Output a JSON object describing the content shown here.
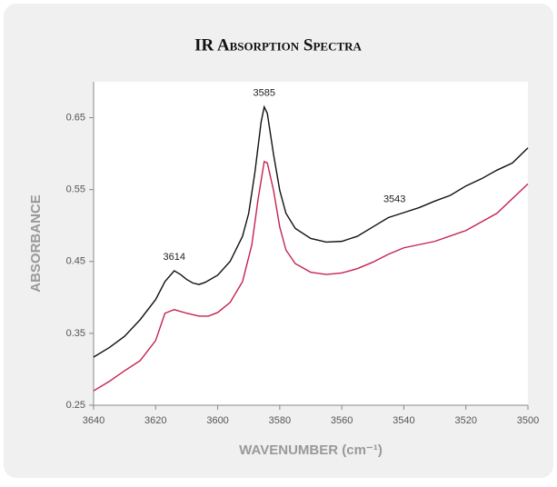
{
  "chart_data": {
    "type": "line",
    "title": "IR Absorption Spectra",
    "xlabel": "WAVENUMBER (cm⁻¹)",
    "ylabel": "ABSORBANCE",
    "xlim": [
      3640,
      3500
    ],
    "xticks": [
      3640,
      3620,
      3600,
      3580,
      3560,
      3540,
      3520,
      3500
    ],
    "ylim": [
      0.25,
      0.7
    ],
    "yticks": [
      0.25,
      0.35,
      0.45,
      0.55,
      0.65
    ],
    "series": [
      {
        "color": "#111111",
        "x": [
          3640,
          3635,
          3630,
          3625,
          3620,
          3617,
          3614,
          3612,
          3610,
          3608,
          3606,
          3604,
          3600,
          3596,
          3592,
          3590,
          3588,
          3586,
          3585,
          3584,
          3582,
          3580,
          3578,
          3575,
          3570,
          3565,
          3560,
          3555,
          3550,
          3545,
          3540,
          3535,
          3530,
          3525,
          3520,
          3515,
          3510,
          3505,
          3500
        ],
        "values": [
          0.317,
          0.33,
          0.346,
          0.369,
          0.397,
          0.422,
          0.437,
          0.432,
          0.425,
          0.42,
          0.418,
          0.421,
          0.431,
          0.45,
          0.485,
          0.517,
          0.574,
          0.644,
          0.665,
          0.656,
          0.599,
          0.549,
          0.517,
          0.496,
          0.482,
          0.477,
          0.478,
          0.485,
          0.498,
          0.511,
          0.518,
          0.525,
          0.534,
          0.542,
          0.555,
          0.565,
          0.577,
          0.587,
          0.608
        ]
      },
      {
        "color": "#c4234f",
        "x": [
          3640,
          3635,
          3630,
          3625,
          3620,
          3617,
          3614,
          3610,
          3606,
          3603,
          3600,
          3596,
          3592,
          3589,
          3587,
          3585,
          3584,
          3582,
          3580,
          3578,
          3575,
          3570,
          3565,
          3560,
          3555,
          3550,
          3545,
          3540,
          3530,
          3520,
          3510,
          3500
        ],
        "values": [
          0.27,
          0.283,
          0.298,
          0.312,
          0.34,
          0.378,
          0.383,
          0.378,
          0.374,
          0.374,
          0.379,
          0.393,
          0.422,
          0.473,
          0.536,
          0.589,
          0.587,
          0.549,
          0.498,
          0.466,
          0.447,
          0.435,
          0.432,
          0.434,
          0.44,
          0.449,
          0.46,
          0.469,
          0.478,
          0.493,
          0.517,
          0.558
        ]
      }
    ],
    "annotations": [
      {
        "text": "3614",
        "x": 3614,
        "y": 0.456
      },
      {
        "text": "3585",
        "x": 3585,
        "y": 0.684
      },
      {
        "text": "3543",
        "x": 3543,
        "y": 0.536
      }
    ]
  }
}
